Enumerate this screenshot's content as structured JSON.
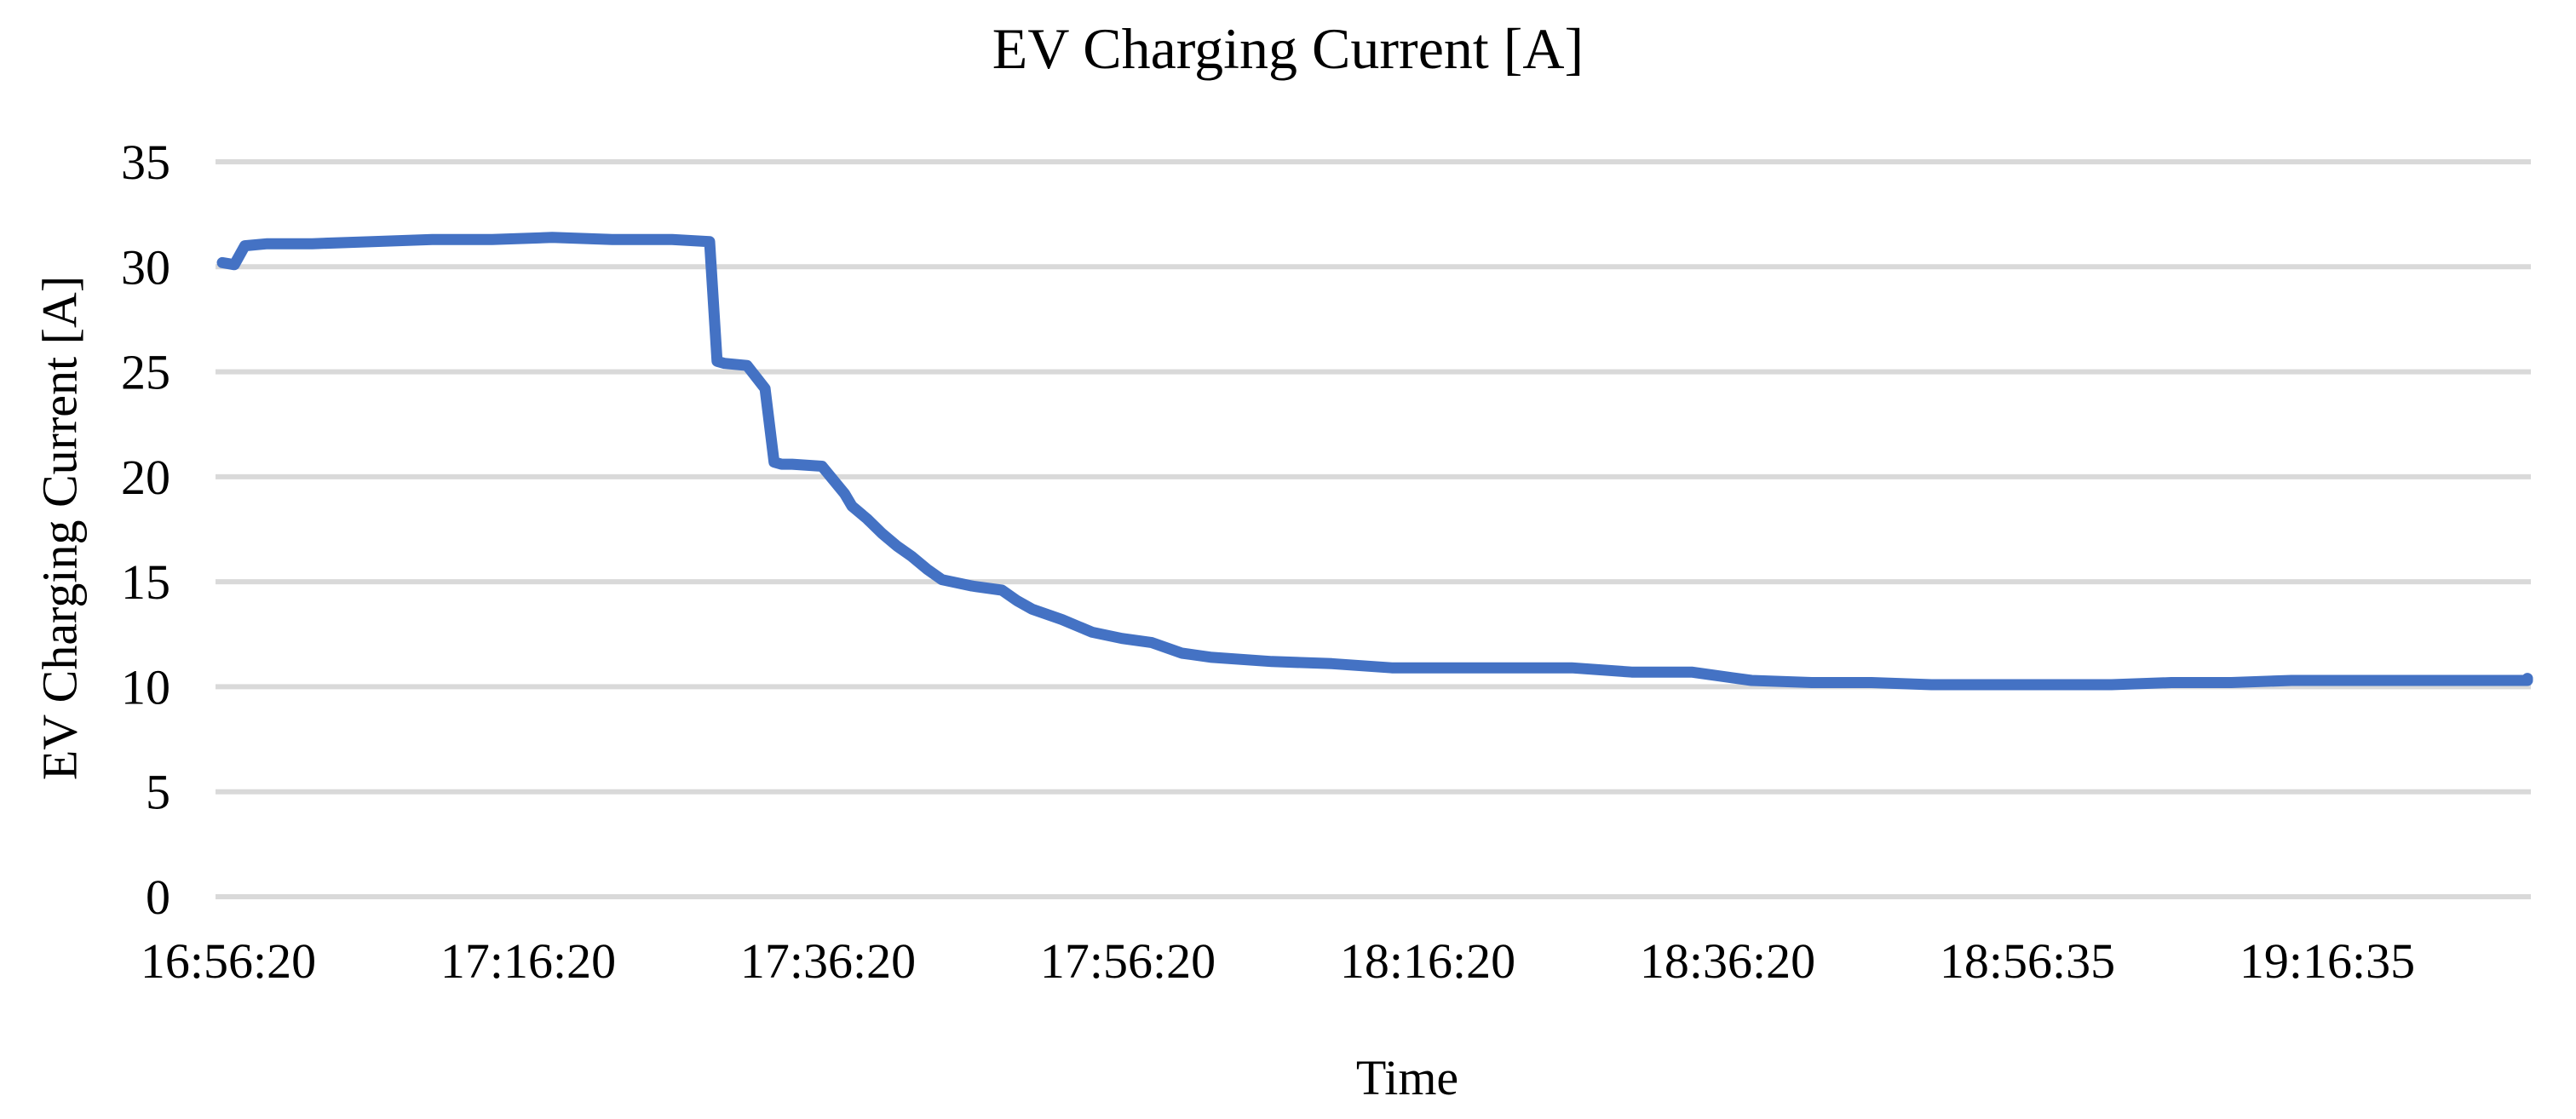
{
  "title": "EV Charging Current [A]",
  "y_axis_label": "EV Charging Current [A]",
  "x_axis_label": "Time",
  "colors": {
    "line": "#4472C4",
    "grid": "#D9D9D9"
  },
  "chart_data": {
    "type": "line",
    "title": "EV Charging Current [A]",
    "xlabel": "Time",
    "ylabel": "EV Charging Current [A]",
    "ylim": [
      0,
      35
    ],
    "yticks": [
      0,
      5,
      10,
      15,
      20,
      25,
      30,
      35
    ],
    "xticks": [
      "16:56:20",
      "17:16:20",
      "17:36:20",
      "17:56:20",
      "18:16:20",
      "18:36:20",
      "18:56:35",
      "19:16:35"
    ],
    "grid": "horizontal",
    "legend": "none",
    "series": [
      {
        "name": "EV Charging Current [A]",
        "x_minutes_from_start": [
          0,
          0.8,
          1.5,
          3,
          6,
          10,
          14,
          18,
          22,
          26,
          30,
          32.5,
          33,
          33.5,
          35,
          36.2,
          36.8,
          37.3,
          37.6,
          38,
          40,
          41.5,
          42,
          43,
          44,
          45,
          46,
          47,
          48,
          50,
          52,
          53,
          54,
          56,
          58,
          60,
          62,
          64,
          66,
          70,
          74,
          78,
          82,
          86,
          90,
          94,
          95,
          98,
          102,
          106,
          110,
          114,
          118,
          122,
          126,
          130,
          134,
          138,
          142,
          146,
          150,
          154,
          158,
          160
        ],
        "values": [
          30.2,
          30.1,
          31.0,
          31.1,
          31.1,
          31.2,
          31.3,
          31.3,
          31.4,
          31.3,
          31.3,
          31.2,
          25.5,
          25.4,
          25.3,
          24.2,
          20.7,
          20.6,
          20.6,
          20.6,
          20.5,
          19.2,
          18.6,
          18.0,
          17.3,
          16.7,
          16.2,
          15.6,
          15.1,
          14.8,
          14.6,
          14.1,
          13.7,
          13.2,
          12.6,
          12.3,
          12.1,
          11.6,
          11.4,
          11.2,
          11.1,
          10.9,
          10.9,
          10.9,
          10.9,
          10.7,
          10.7,
          10.7,
          10.3,
          10.2,
          10.2,
          10.1,
          10.1,
          10.1,
          10.1,
          10.2,
          10.2,
          10.3,
          10.3,
          10.3,
          10.3,
          10.3,
          10.4,
          10.4
        ]
      }
    ]
  }
}
